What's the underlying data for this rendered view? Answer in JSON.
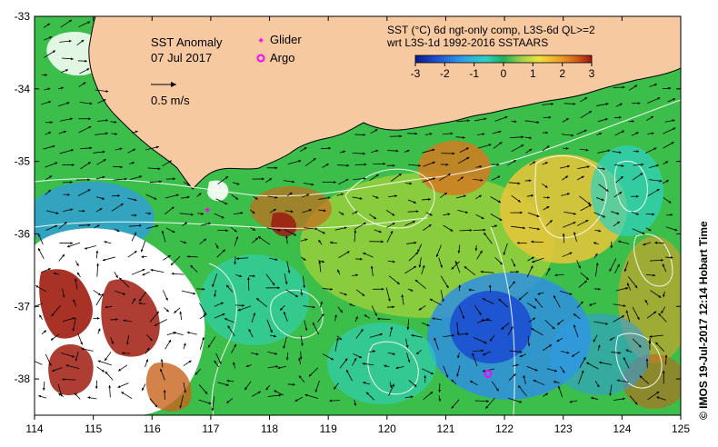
{
  "title": {
    "line1": "SST Anomaly",
    "line2": "07 Jul 2017"
  },
  "scale_arrow_label": "0.5 m/s",
  "legend": {
    "glider": "Glider",
    "argo": "Argo",
    "glider_marker": "✦",
    "argo_marker": "✺"
  },
  "product": {
    "line1": "SST (°C) 6d ngt-only comp, L3S-6d QL>=2",
    "line2": "wrt L3S-1d 1992-2016 SSTAARS"
  },
  "colorbar": {
    "ticks": [
      "-3",
      "-2",
      "-1",
      "0",
      "1",
      "2",
      "3"
    ],
    "colors": [
      "#081a8c",
      "#1c4fd0",
      "#2f9be8",
      "#2ed1c4",
      "#1fb05a",
      "#9bd24a",
      "#f0e23a",
      "#f0a02a",
      "#d25a18",
      "#9a1410"
    ]
  },
  "footer": "© IMOS 19-Jul-2017 12:14 Hobart Time",
  "axes": {
    "x_ticks": [
      "114",
      "115",
      "116",
      "117",
      "118",
      "119",
      "120",
      "121",
      "122",
      "123",
      "124",
      "125"
    ],
    "y_ticks": [
      "-33",
      "-34",
      "-35",
      "-36",
      "-37",
      "-38"
    ]
  },
  "land_color": "#f7c9a0",
  "markers": {
    "glider": {
      "lon": 116.95,
      "lat": -35.67
    },
    "argo": {
      "lon": 121.72,
      "lat": -37.93
    }
  }
}
